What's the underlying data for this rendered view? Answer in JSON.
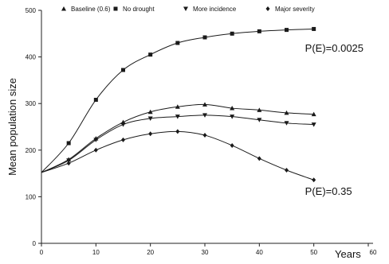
{
  "chart_data": {
    "type": "line",
    "title": "",
    "xlabel": "Years",
    "ylabel": "Mean population size",
    "xlim": [
      0,
      60
    ],
    "ylim": [
      0,
      500
    ],
    "x_ticks": [
      0,
      10,
      20,
      30,
      40,
      50,
      60
    ],
    "y_ticks": [
      0,
      100,
      200,
      300,
      400,
      500
    ],
    "grid": false,
    "legend_position": "top",
    "x": [
      0,
      5,
      10,
      15,
      20,
      25,
      30,
      35,
      40,
      45,
      50
    ],
    "series": [
      {
        "name": "Baseline (0.6)",
        "marker": "triangle-up",
        "values": [
          152,
          180,
          225,
          260,
          282,
          293,
          298,
          290,
          286,
          280,
          277
        ]
      },
      {
        "name": "No drought",
        "marker": "square",
        "values": [
          152,
          215,
          308,
          372,
          405,
          430,
          442,
          450,
          455,
          458,
          460
        ]
      },
      {
        "name": "More incidence",
        "marker": "triangle-down",
        "values": [
          152,
          178,
          222,
          255,
          268,
          272,
          275,
          272,
          265,
          258,
          255
        ]
      },
      {
        "name": "Major severity",
        "marker": "diamond",
        "values": [
          152,
          172,
          200,
          222,
          235,
          240,
          232,
          210,
          182,
          157,
          136
        ]
      }
    ],
    "annotations": [
      {
        "text": "P(E)=0.0025",
        "x": 50,
        "y": 420
      },
      {
        "text": "P(E)=0.35",
        "x": 50,
        "y": 113
      }
    ],
    "color": "#1a1a1a"
  }
}
